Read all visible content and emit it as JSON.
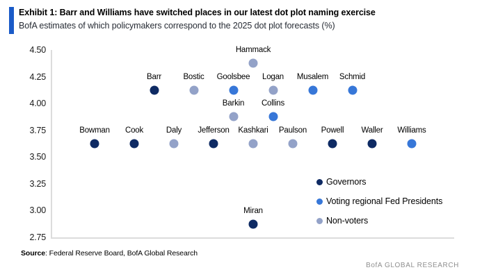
{
  "header": {
    "title": "Exhibit 1: Barr and Williams have switched places in our latest dot plot naming exercise",
    "subtitle": "BofA estimates of which policymakers correspond to the 2025 dot plot forecasts (%)"
  },
  "chart_data": {
    "type": "scatter",
    "title": "Exhibit 1: Barr and Williams have switched places in our latest dot plot naming exercise",
    "subtitle": "BofA estimates of which policymakers correspond to the 2025 dot plot forecasts (%)",
    "xlabel": "",
    "ylabel": "",
    "ylim": [
      2.75,
      4.5
    ],
    "yticks": [
      "4.50",
      "4.25",
      "4.00",
      "3.75",
      "3.50",
      "3.25",
      "3.00",
      "2.75"
    ],
    "grid": false,
    "legend_position": "inside-right",
    "groups": [
      {
        "id": "governor",
        "label": "Governors",
        "color": "#0e2a63"
      },
      {
        "id": "voter",
        "label": "Voting regional Fed Presidents",
        "color": "#3777d8"
      },
      {
        "id": "nonvoter",
        "label": "Non-voters",
        "color": "#93a2c8"
      }
    ],
    "points": [
      {
        "name": "Bowman",
        "rate": 3.625,
        "slot": 0,
        "group": "governor"
      },
      {
        "name": "Cook",
        "rate": 3.625,
        "slot": 1,
        "group": "governor"
      },
      {
        "name": "Daly",
        "rate": 3.625,
        "slot": 2,
        "group": "nonvoter"
      },
      {
        "name": "Jefferson",
        "rate": 3.625,
        "slot": 3,
        "group": "governor"
      },
      {
        "name": "Kashkari",
        "rate": 3.625,
        "slot": 4,
        "group": "nonvoter"
      },
      {
        "name": "Paulson",
        "rate": 3.625,
        "slot": 5,
        "group": "nonvoter"
      },
      {
        "name": "Powell",
        "rate": 3.625,
        "slot": 6,
        "group": "governor"
      },
      {
        "name": "Waller",
        "rate": 3.625,
        "slot": 7,
        "group": "governor"
      },
      {
        "name": "Williams",
        "rate": 3.625,
        "slot": 8,
        "group": "voter"
      },
      {
        "name": "Barr",
        "rate": 4.125,
        "slot": 1.5,
        "group": "governor"
      },
      {
        "name": "Bostic",
        "rate": 4.125,
        "slot": 2.5,
        "group": "nonvoter"
      },
      {
        "name": "Goolsbee",
        "rate": 4.125,
        "slot": 3.5,
        "group": "voter"
      },
      {
        "name": "Logan",
        "rate": 4.125,
        "slot": 4.5,
        "group": "nonvoter"
      },
      {
        "name": "Musalem",
        "rate": 4.125,
        "slot": 5.5,
        "group": "voter"
      },
      {
        "name": "Schmid",
        "rate": 4.125,
        "slot": 6.5,
        "group": "voter"
      },
      {
        "name": "Barkin",
        "rate": 3.875,
        "slot": 3.5,
        "group": "nonvoter"
      },
      {
        "name": "Collins",
        "rate": 3.875,
        "slot": 4.5,
        "group": "voter"
      },
      {
        "name": "Hammack",
        "rate": 4.375,
        "slot": 4,
        "group": "nonvoter"
      },
      {
        "name": "Miran",
        "rate": 2.875,
        "slot": 4,
        "group": "governor"
      }
    ]
  },
  "colors": {
    "accent_bar": "#1a5bc8",
    "axis_line": "#dcdcdc",
    "brand_text": "#8f8f8f"
  },
  "footer": {
    "source_label": "Source",
    "source_text": ": Federal Reserve Board, BofA Global Research",
    "brand": "BofA GLOBAL RESEARCH"
  }
}
